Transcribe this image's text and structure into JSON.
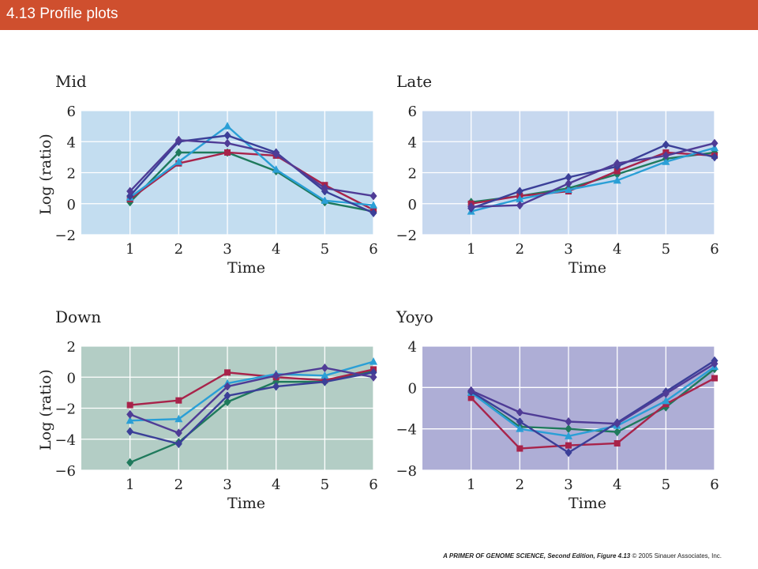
{
  "header": {
    "title": "4.13 Profile plots"
  },
  "footer": {
    "book": "A PRIMER OF GENOME SCIENCE, Second Edition, Figure 4.13",
    "copyright": "© 2005 Sinauer Associates, Inc."
  },
  "series_colors": [
    "#1f7a5c",
    "#a8234a",
    "#2a9fd6",
    "#3b3f98",
    "#4f3c96"
  ],
  "chart_data": [
    {
      "type": "line",
      "title": "Mid",
      "xlabel": "Time",
      "ylabel": "Log (ratio)",
      "background": "#c3ddf0",
      "grid": true,
      "xlim": [
        0,
        6
      ],
      "ylim": [
        -2,
        6
      ],
      "x": [
        1,
        2,
        3,
        4,
        5,
        6
      ],
      "xticks": [
        "1",
        "2",
        "3",
        "4",
        "5",
        "6"
      ],
      "yticks": [
        "−2",
        "0",
        "2",
        "4",
        "6"
      ],
      "ytick_values": [
        -2,
        0,
        2,
        4,
        6
      ],
      "series": [
        {
          "marker": "diamond",
          "values": [
            0.1,
            3.3,
            3.3,
            2.1,
            0.1,
            -0.5
          ]
        },
        {
          "marker": "square",
          "values": [
            0.3,
            2.6,
            3.3,
            3.1,
            1.2,
            -0.4
          ]
        },
        {
          "marker": "triangle",
          "values": [
            0.4,
            2.7,
            5.0,
            2.2,
            0.2,
            -0.1
          ]
        },
        {
          "marker": "diamond",
          "values": [
            0.5,
            4.0,
            4.4,
            3.3,
            0.8,
            -0.6
          ]
        },
        {
          "marker": "diamond",
          "values": [
            0.8,
            4.1,
            3.9,
            3.2,
            1.0,
            0.5
          ]
        }
      ]
    },
    {
      "type": "line",
      "title": "Late",
      "xlabel": "Time",
      "ylabel": "",
      "background": "#c7d8ef",
      "grid": true,
      "xlim": [
        0,
        6
      ],
      "ylim": [
        -2,
        6
      ],
      "x": [
        1,
        2,
        3,
        4,
        5,
        6
      ],
      "xticks": [
        "1",
        "2",
        "3",
        "4",
        "5",
        "6"
      ],
      "yticks": [
        "−2",
        "0",
        "2",
        "4",
        "6"
      ],
      "ytick_values": [
        -2,
        0,
        2,
        4,
        6
      ],
      "series": [
        {
          "marker": "diamond",
          "values": [
            0.1,
            0.5,
            1.0,
            1.9,
            2.9,
            3.3
          ]
        },
        {
          "marker": "square",
          "values": [
            0.0,
            0.5,
            0.8,
            2.1,
            3.3,
            3.1
          ]
        },
        {
          "marker": "triangle",
          "values": [
            -0.5,
            0.3,
            0.9,
            1.5,
            2.7,
            3.6
          ]
        },
        {
          "marker": "diamond",
          "values": [
            -0.3,
            0.8,
            1.7,
            2.4,
            3.8,
            3.0
          ]
        },
        {
          "marker": "diamond",
          "values": [
            -0.2,
            -0.1,
            1.3,
            2.6,
            3.1,
            3.9
          ]
        }
      ]
    },
    {
      "type": "line",
      "title": "Down",
      "xlabel": "Time",
      "ylabel": "Log (ratio)",
      "background": "#b3cdc5",
      "grid": true,
      "xlim": [
        0,
        6
      ],
      "ylim": [
        -6,
        2
      ],
      "x": [
        1,
        2,
        3,
        4,
        5,
        6
      ],
      "xticks": [
        "1",
        "2",
        "3",
        "4",
        "5",
        "6"
      ],
      "yticks": [
        "−6",
        "−4",
        "−2",
        "0",
        "2"
      ],
      "ytick_values": [
        -6,
        -4,
        -2,
        0,
        2
      ],
      "series": [
        {
          "marker": "diamond",
          "values": [
            -5.5,
            -4.2,
            -1.6,
            -0.3,
            -0.3,
            0.4
          ]
        },
        {
          "marker": "square",
          "values": [
            -1.8,
            -1.5,
            0.3,
            0.0,
            -0.2,
            0.5
          ]
        },
        {
          "marker": "triangle",
          "values": [
            -2.8,
            -2.7,
            -0.4,
            0.2,
            0.1,
            1.0
          ]
        },
        {
          "marker": "diamond",
          "values": [
            -3.5,
            -4.3,
            -1.2,
            -0.6,
            -0.3,
            0.3
          ]
        },
        {
          "marker": "diamond",
          "values": [
            -2.4,
            -3.6,
            -0.6,
            0.1,
            0.6,
            0.0
          ]
        }
      ]
    },
    {
      "type": "line",
      "title": "Yoyo",
      "xlabel": "Time",
      "ylabel": "",
      "background": "#aeaed6",
      "grid": true,
      "xlim": [
        0,
        6
      ],
      "ylim": [
        -8,
        4
      ],
      "x": [
        1,
        2,
        3,
        4,
        5,
        6
      ],
      "xticks": [
        "1",
        "2",
        "3",
        "4",
        "5",
        "6"
      ],
      "yticks": [
        "−8",
        "−4",
        "0",
        "4"
      ],
      "ytick_values": [
        -8,
        -4,
        0,
        4
      ],
      "series": [
        {
          "marker": "diamond",
          "values": [
            -0.5,
            -3.8,
            -4.0,
            -4.3,
            -1.9,
            1.8
          ]
        },
        {
          "marker": "square",
          "values": [
            -1.0,
            -5.9,
            -5.6,
            -5.4,
            -1.6,
            0.9
          ]
        },
        {
          "marker": "triangle",
          "values": [
            -0.5,
            -4.0,
            -4.7,
            -3.7,
            -1.3,
            2.0
          ]
        },
        {
          "marker": "diamond",
          "values": [
            -0.4,
            -3.3,
            -6.3,
            -3.4,
            -0.4,
            2.6
          ]
        },
        {
          "marker": "diamond",
          "values": [
            -0.3,
            -2.4,
            -3.3,
            -3.5,
            -0.6,
            2.3
          ]
        }
      ]
    }
  ]
}
